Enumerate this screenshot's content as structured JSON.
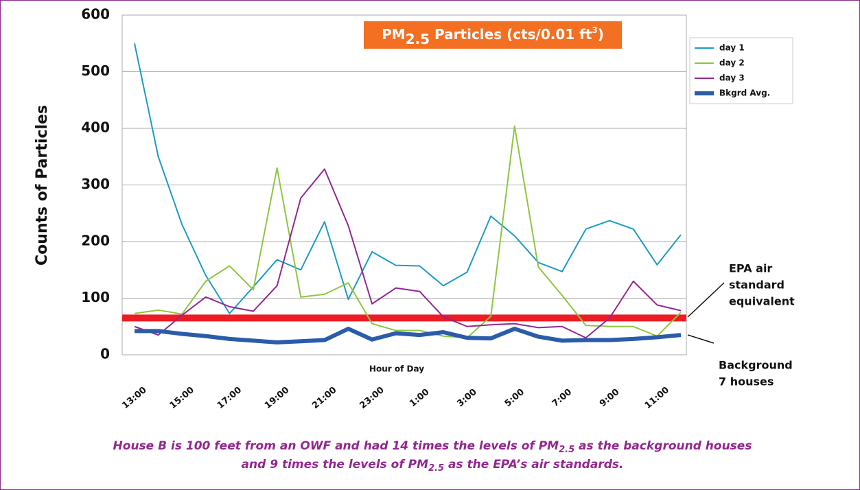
{
  "chart_data": {
    "type": "line",
    "title": {
      "parts": [
        "PM",
        "2.5",
        " Particles (cts/0.01 ft",
        "3",
        ")"
      ]
    },
    "title_color": "#f36f21",
    "y_label": "Counts of Particles",
    "x_label": "Hour of Day",
    "categories": [
      "13:00",
      null,
      "15:00",
      null,
      "17:00",
      null,
      "19:00",
      null,
      "21:00",
      null,
      "23:00",
      null,
      "1:00",
      null,
      "3:00",
      null,
      "5:00",
      null,
      "7:00",
      null,
      "9:00",
      null,
      "11:00",
      null
    ],
    "series": [
      {
        "name": "day 1",
        "color": "#1a9bc5",
        "width": 2,
        "values": [
          550,
          350,
          230,
          140,
          73,
          120,
          168,
          150,
          235,
          98,
          182,
          158,
          157,
          122,
          146,
          245,
          210,
          163,
          147,
          222,
          237,
          222,
          159,
          212
        ]
      },
      {
        "name": "day 2",
        "color": "#8dc63f",
        "width": 2,
        "values": [
          73,
          79,
          72,
          130,
          157,
          115,
          330,
          102,
          107,
          127,
          55,
          43,
          43,
          33,
          30,
          68,
          404,
          155,
          105,
          52,
          50,
          50,
          33,
          75
        ]
      },
      {
        "name": "day 3",
        "color": "#92278f",
        "width": 2,
        "values": [
          50,
          35,
          70,
          102,
          85,
          77,
          122,
          277,
          328,
          228,
          90,
          118,
          112,
          67,
          50,
          53,
          55,
          48,
          50,
          30,
          65,
          130,
          88,
          78
        ]
      },
      {
        "name": "Bkgrd Avg.",
        "color": "#2a5caa",
        "width": 6,
        "values": [
          42,
          42,
          37,
          33,
          28,
          25,
          22,
          24,
          26,
          46,
          27,
          38,
          35,
          40,
          30,
          29,
          46,
          32,
          25,
          26,
          26,
          28,
          31,
          35
        ]
      }
    ],
    "epa_standard": {
      "value": 65,
      "color": "#ed1c24",
      "lines": [
        "EPA air",
        "standard",
        "equivalent"
      ]
    },
    "background_note": {
      "lines": [
        "Background",
        "7 houses"
      ]
    },
    "ylim": [
      0,
      600
    ],
    "yticks": [
      0,
      100,
      200,
      300,
      400,
      500,
      600
    ],
    "grid": true,
    "caption": {
      "line1": [
        "House B is 100 feet  from an OWF and had 14 times the levels of  PM",
        "2.5",
        " as the background houses"
      ],
      "line2": [
        "and 9 times the levels of  PM",
        "2.5",
        " as the EPA’s air standards."
      ]
    }
  }
}
